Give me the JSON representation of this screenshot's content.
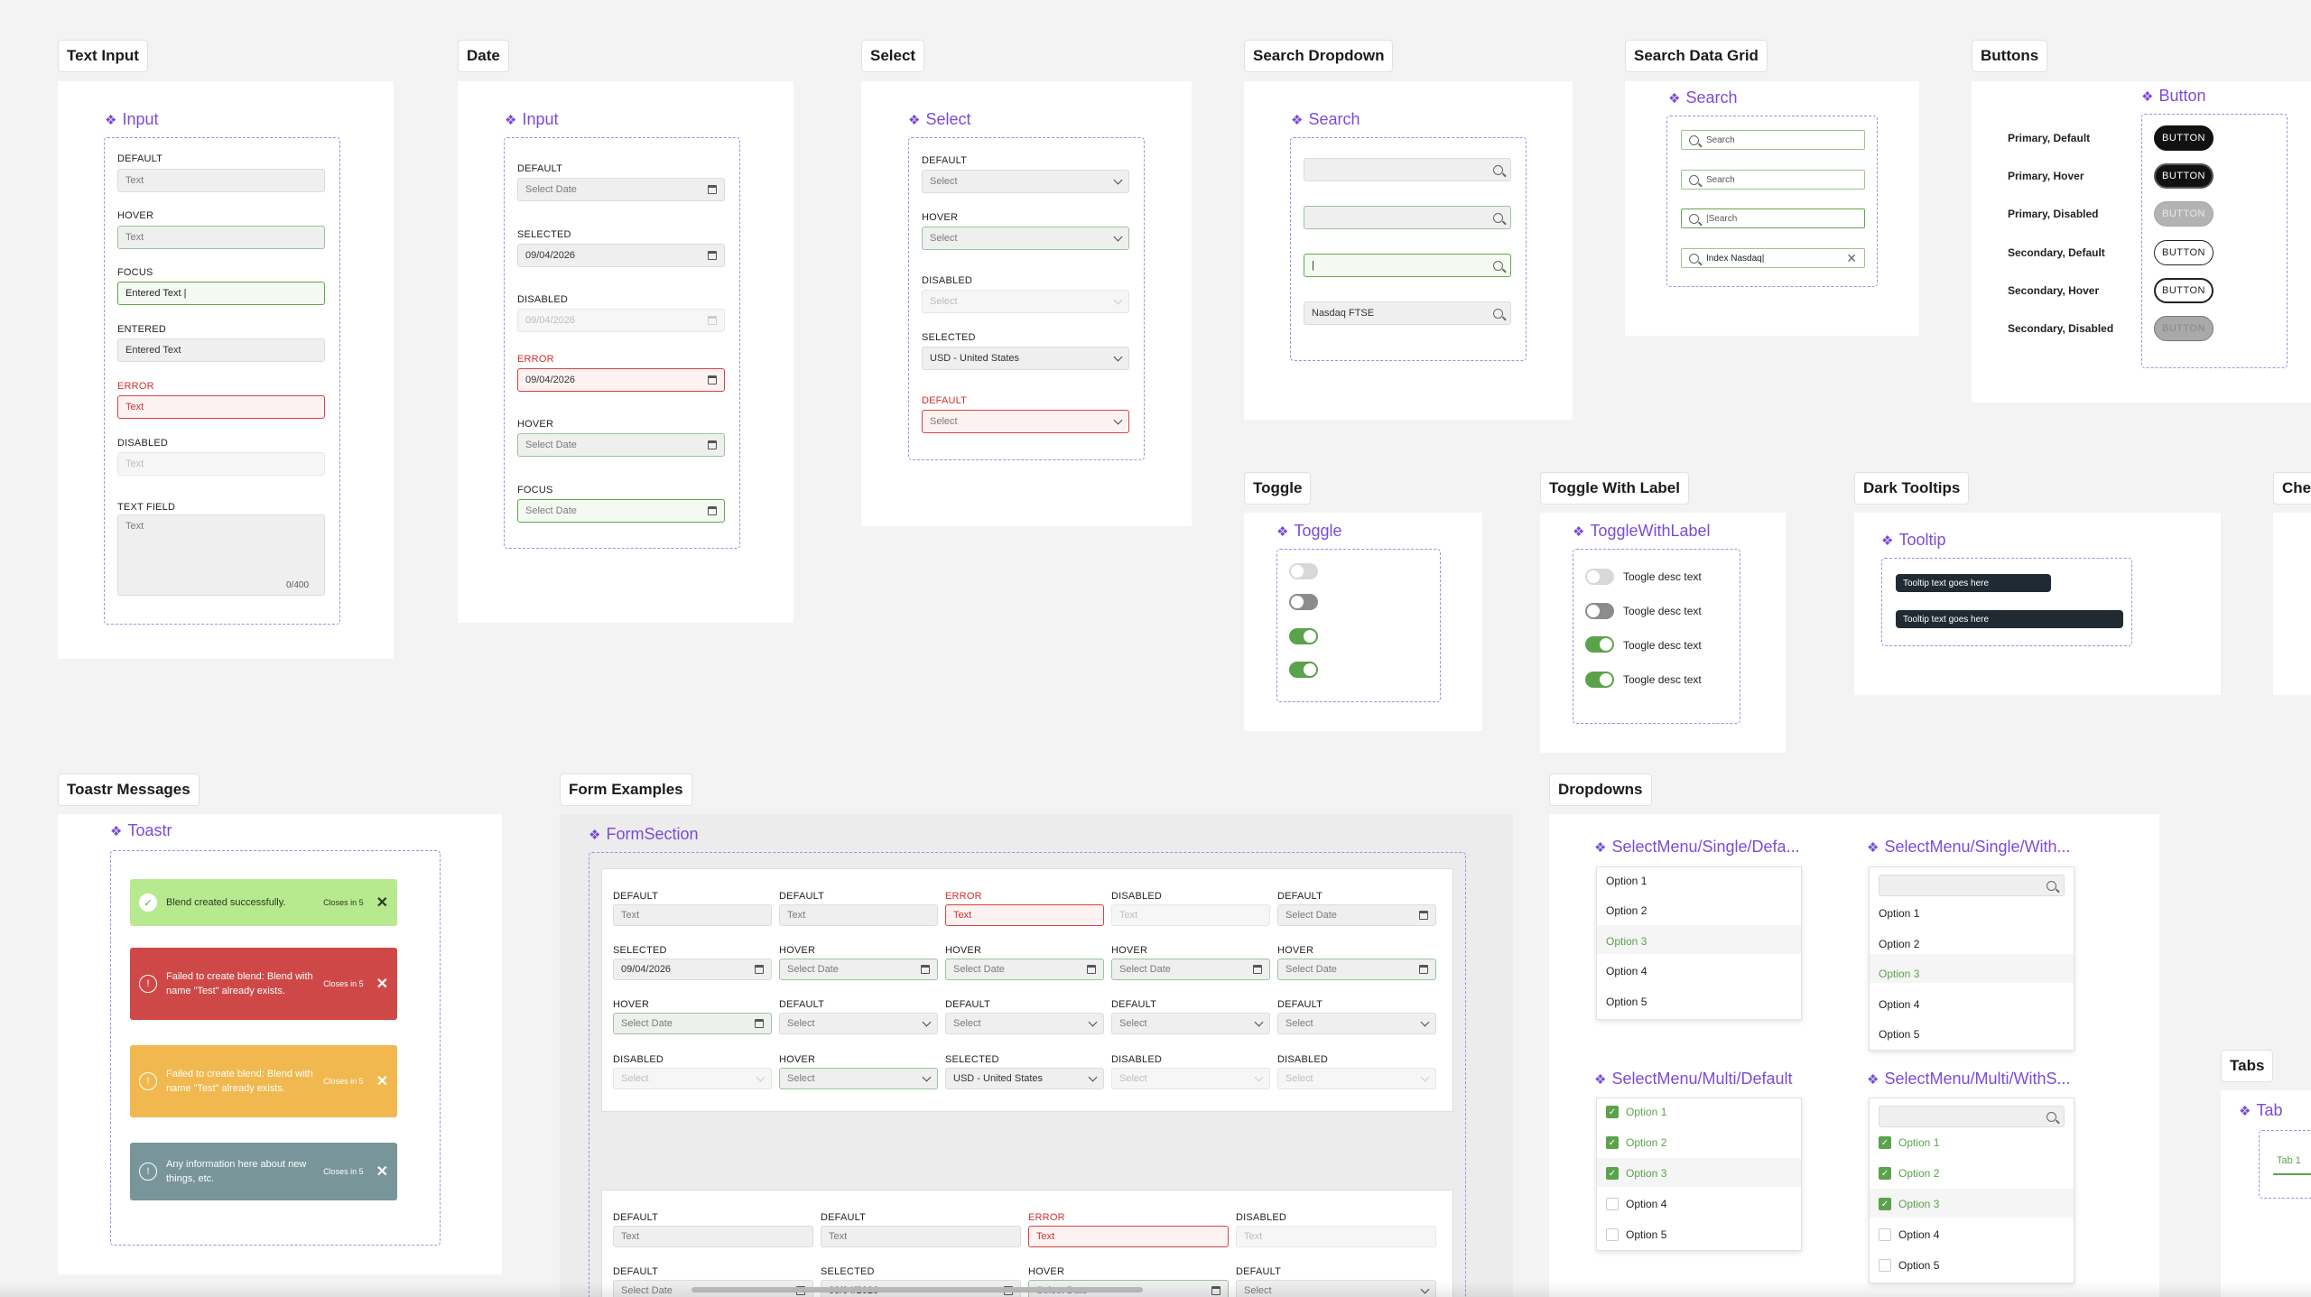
{
  "sections": {
    "text_input": "Text Input",
    "date": "Date",
    "select": "Select",
    "search_dropdown": "Search Dropdown",
    "search_data_grid": "Search Data Grid",
    "buttons": "Buttons",
    "toggle": "Toggle",
    "toggle_with_label": "Toggle With Label",
    "dark_tooltips": "Dark Tooltips",
    "che": "Che",
    "toastr_messages": "Toastr Messages",
    "form_examples": "Form Examples",
    "dropdowns": "Dropdowns",
    "tabs": "Tabs"
  },
  "components": {
    "input": "Input",
    "date_input": "Input",
    "select": "Select",
    "search": "Search",
    "search_grid": "Search",
    "button": "Button",
    "toggle": "Toggle",
    "toggle_with_label": "ToggleWithLabel",
    "tooltip": "Tooltip",
    "toastr": "Toastr",
    "form_section": "FormSection",
    "sm_single_default": "SelectMenu/Single/Defa...",
    "sm_single_with": "SelectMenu/Single/With...",
    "sm_multi_default": "SelectMenu/Multi/Default",
    "sm_multi_with": "SelectMenu/Multi/WithS...",
    "tab": "Tab"
  },
  "text_input": {
    "default_label": "DEFAULT",
    "default_value": "Text",
    "hover_label": "HOVER",
    "hover_value": "Text",
    "focus_label": "FOCUS",
    "focus_value": "Entered Text |",
    "entered_label": "ENTERED",
    "entered_value": "Entered Text",
    "error_label": "ERROR",
    "error_value": "Text",
    "disabled_label": "DISABLED",
    "disabled_value": "Text",
    "textfield_label": "TEXT FIELD",
    "textfield_value": "Text",
    "textfield_count": "0/400"
  },
  "date": {
    "default_label": "DEFAULT",
    "default_value": "Select Date",
    "selected_label": "SELECTED",
    "selected_value": "09/04/2026",
    "disabled_label": "DISABLED",
    "disabled_value": "09/04/2026",
    "error_label": "ERROR",
    "error_value": "09/04/2026",
    "hover_label": "HOVER",
    "hover_value": "Select Date",
    "focus_label": "FOCUS",
    "focus_value": "Select Date"
  },
  "select": {
    "default_label": "DEFAULT",
    "default_value": "Select",
    "hover_label": "HOVER",
    "hover_value": "Select",
    "disabled_label": "DISABLED",
    "disabled_value": "Select",
    "selected_label": "SELECTED",
    "selected_value": "USD - United States",
    "error_label": "DEFAULT",
    "error_value": "Select"
  },
  "search_dropdown": {
    "focus_value": "|",
    "entered_value": "Nasdaq FTSE"
  },
  "search_grid": {
    "v1": "Search",
    "v2": "Search",
    "v3": "|Search",
    "v4": "Index Nasdaq|"
  },
  "buttons": {
    "rows": [
      "Primary, Default",
      "Primary, Hover",
      "Primary, Disabled",
      "Secondary, Default",
      "Secondary, Hover",
      "Secondary, Disabled"
    ],
    "label": "BUTTON"
  },
  "toggle_labels": [
    "Toogle desc text",
    "Toogle desc text",
    "Toogle desc text",
    "Toogle desc text"
  ],
  "tooltips": [
    "Tooltip text goes here",
    "Tooltip text goes here"
  ],
  "toasts": [
    {
      "text": "Blend created successfully.",
      "closes": "Closes in 5",
      "color": "#b7ea8f",
      "icon": "check-icon"
    },
    {
      "text": "Failed to create blend: Blend with name \"Test\" already exists.",
      "closes": "Closes in 5",
      "color": "#cf4848",
      "icon": "error-icon"
    },
    {
      "text": "Failed to create blend: Blend with name \"Test\" already exists.",
      "closes": "Closes in 5",
      "color": "#f1b84f",
      "icon": "warning-icon"
    },
    {
      "text": "Any information here about new things, etc.",
      "closes": "Closes in 5",
      "color": "#78959a",
      "icon": "info-icon"
    }
  ],
  "form1": {
    "r1": [
      [
        "DEFAULT",
        "Text"
      ],
      [
        "DEFAULT",
        "Text"
      ],
      [
        "ERROR",
        "Text"
      ],
      [
        "DISABLED",
        "Text"
      ],
      [
        "DEFAULT",
        "Select Date"
      ]
    ],
    "r2": [
      [
        "SELECTED",
        "09/04/2026"
      ],
      [
        "HOVER",
        "Select Date"
      ],
      [
        "HOVER",
        "Select Date"
      ],
      [
        "HOVER",
        "Select Date"
      ],
      [
        "HOVER",
        "Select Date"
      ]
    ],
    "r3": [
      [
        "HOVER",
        "Select Date"
      ],
      [
        "DEFAULT",
        "Select"
      ],
      [
        "DEFAULT",
        "Select"
      ],
      [
        "DEFAULT",
        "Select"
      ],
      [
        "DEFAULT",
        "Select"
      ]
    ],
    "r4": [
      [
        "DISABLED",
        "Select"
      ],
      [
        "HOVER",
        "Select"
      ],
      [
        "SELECTED",
        "USD - United States"
      ],
      [
        "DISABLED",
        "Select"
      ],
      [
        "DISABLED",
        "Select"
      ]
    ]
  },
  "form2": {
    "r1": [
      [
        "DEFAULT",
        "Text"
      ],
      [
        "DEFAULT",
        "Text"
      ],
      [
        "ERROR",
        "Text"
      ],
      [
        "DISABLED",
        "Text"
      ]
    ],
    "r2": [
      [
        "DEFAULT",
        "Select Date"
      ],
      [
        "SELECTED",
        "09/04/2026"
      ],
      [
        "HOVER",
        "Select Date"
      ],
      [
        "DEFAULT",
        "Select"
      ]
    ]
  },
  "dropdown_options": [
    "Option 1",
    "Option 2",
    "Option 3",
    "Option 4",
    "Option 5"
  ],
  "tab_label": "Tab 1",
  "colors": {
    "accent": "#7b4bd8",
    "green": "#5ba24c",
    "error": "#d03030"
  }
}
